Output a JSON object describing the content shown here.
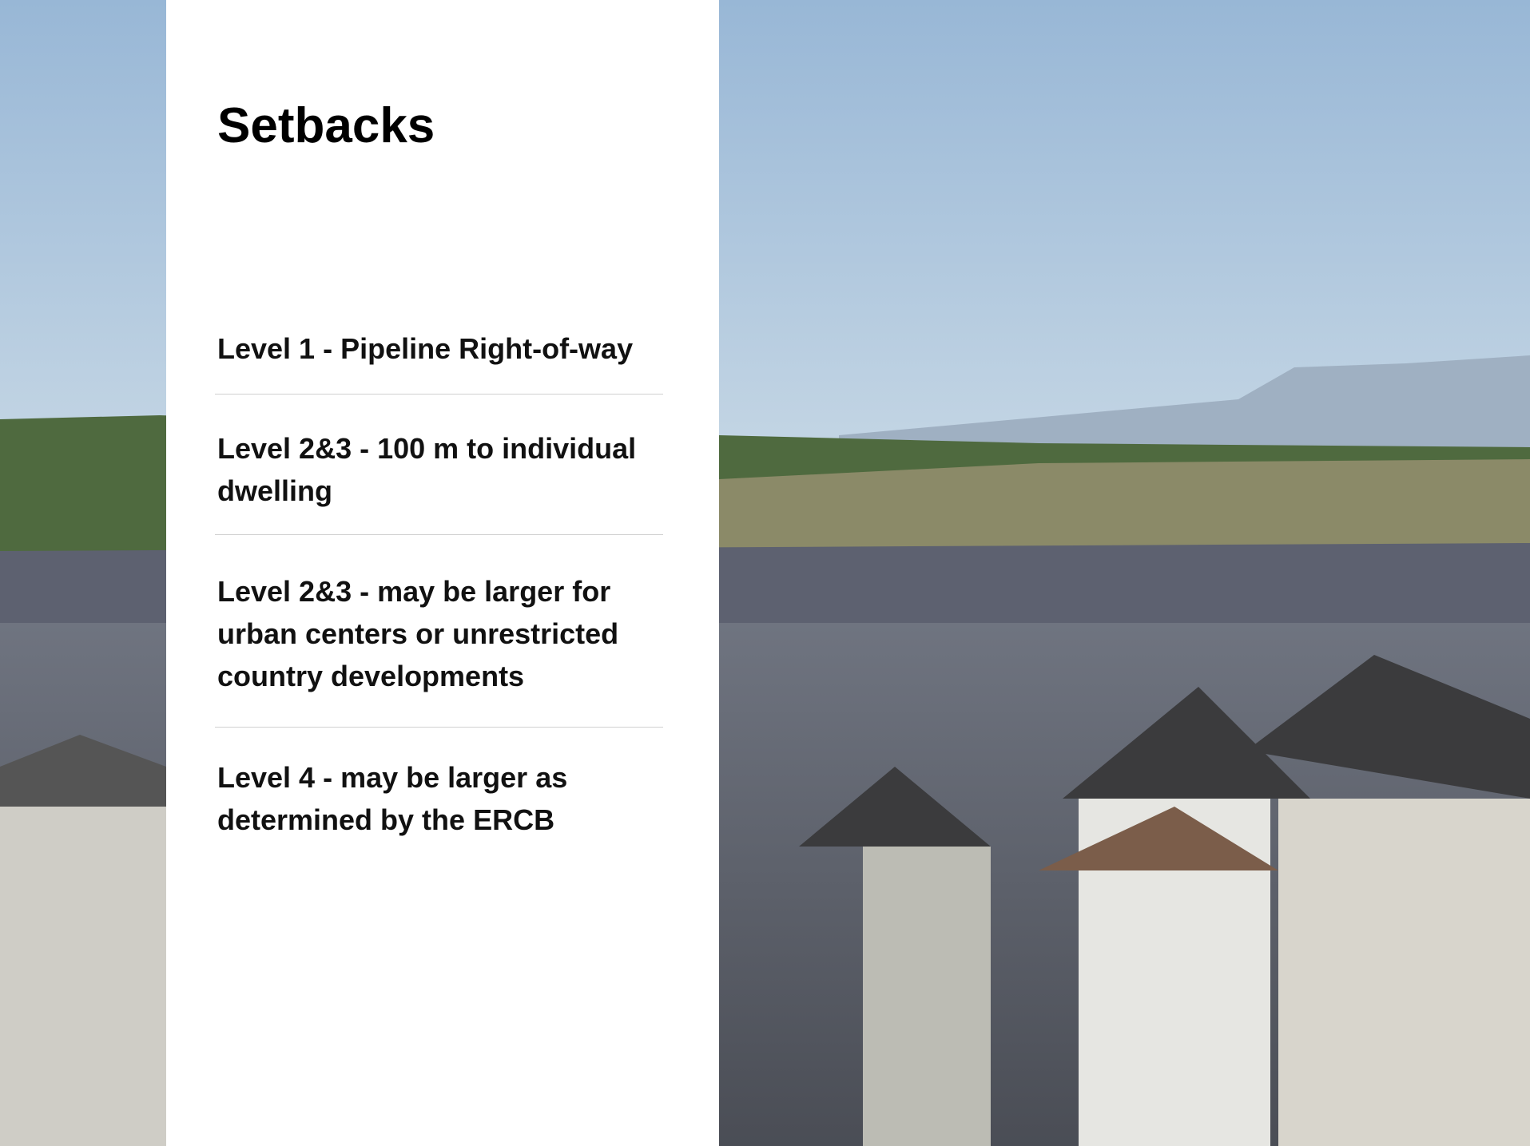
{
  "header": {
    "title": "Setbacks"
  },
  "items": [
    "Level 1 - Pipeline Right-of-way",
    "Level 2&3 - 100 m to individual dwelling",
    "Level 2&3 - may be larger for urban centers or unrestricted country developments",
    "Level 4 - may be larger as determined by the ERCB"
  ]
}
